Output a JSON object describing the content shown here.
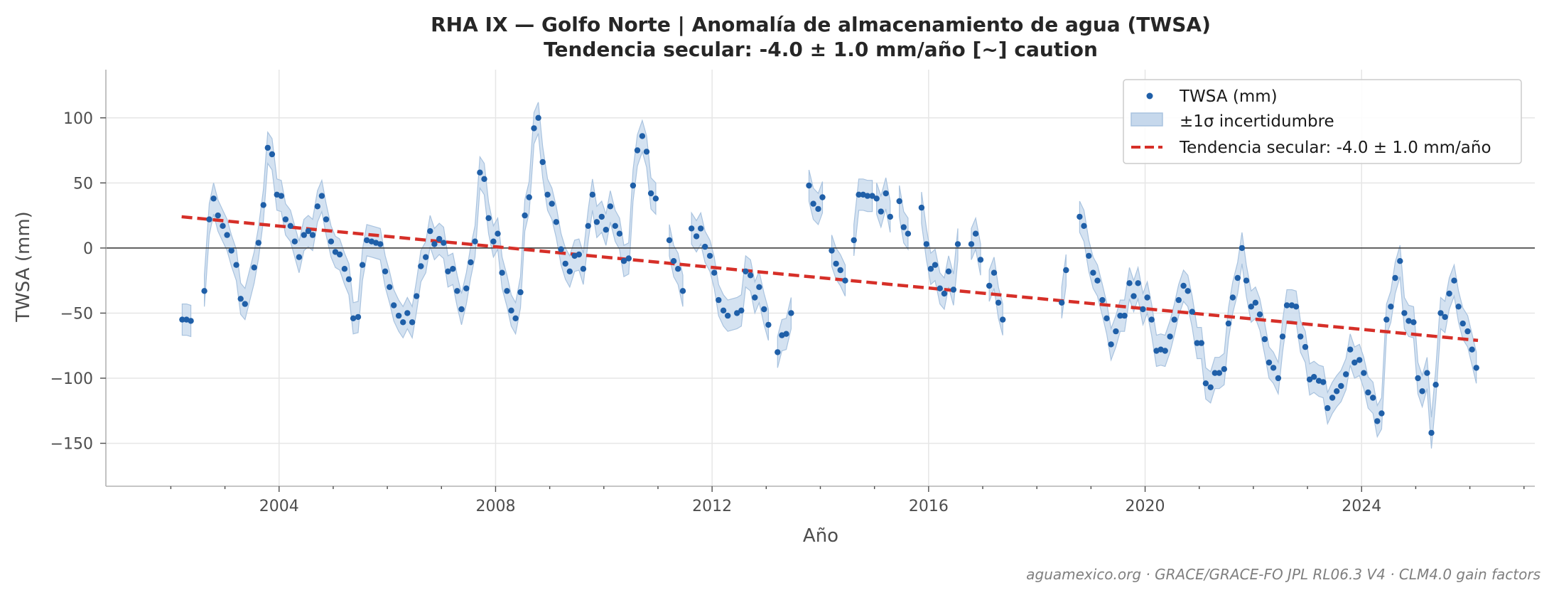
{
  "chart_data": {
    "type": "scatter",
    "title": "RHA IX — Golfo Norte  |  Anomalía de almacenamiento de agua (TWSA)",
    "subtitle": "Tendencia secular: -4.0 ± 1.0 mm/año  [~] caution",
    "xlabel": "Año",
    "ylabel": "TWSA (mm)",
    "xlim": [
      2000.8,
      2027.2
    ],
    "ylim": [
      -183,
      137
    ],
    "x_ticks": [
      2004,
      2008,
      2012,
      2016,
      2020,
      2024
    ],
    "x_tick_labels": [
      "2004",
      "2008",
      "2012",
      "2016",
      "2020",
      "2024"
    ],
    "y_ticks": [
      100,
      50,
      0,
      -50,
      -100,
      -150
    ],
    "y_tick_labels": [
      "100",
      "50",
      "0",
      "−50",
      "−100",
      "−150"
    ],
    "grid": true,
    "zero_line": true,
    "legend_position": "top-right",
    "legend": [
      "TWSA (mm)",
      "±1σ incertidumbre",
      "Tendencia secular: -4.0 ± 1.0 mm/año"
    ],
    "colors": {
      "points": "#1f5fa8",
      "band": "#c6d8ec",
      "band_edge": "#a9c3df",
      "trend": "#d62f28",
      "zero": "#333333",
      "grid": "#e6e6e6"
    },
    "sigma_mm": 12,
    "segments": [
      [
        [
          2002.21,
          -55
        ],
        [
          2002.29,
          -55
        ],
        [
          2002.37,
          -56
        ]
      ],
      [
        [
          2002.62,
          -33
        ],
        [
          2002.71,
          22
        ],
        [
          2002.79,
          38
        ],
        [
          2002.87,
          25
        ],
        [
          2002.96,
          17
        ],
        [
          2003.04,
          10
        ],
        [
          2003.12,
          -2
        ],
        [
          2003.21,
          -13
        ],
        [
          2003.29,
          -39
        ],
        [
          2003.37,
          -43
        ],
        [
          2003.54,
          -15
        ],
        [
          2003.62,
          4
        ],
        [
          2003.71,
          33
        ],
        [
          2003.79,
          77
        ],
        [
          2003.87,
          72
        ],
        [
          2003.96,
          41
        ],
        [
          2004.04,
          40
        ],
        [
          2004.12,
          22
        ],
        [
          2004.21,
          17
        ],
        [
          2004.29,
          5
        ],
        [
          2004.37,
          -7
        ],
        [
          2004.46,
          10
        ],
        [
          2004.54,
          13
        ],
        [
          2004.62,
          10
        ],
        [
          2004.71,
          32
        ],
        [
          2004.79,
          40
        ],
        [
          2004.87,
          22
        ],
        [
          2004.96,
          5
        ],
        [
          2005.04,
          -3
        ],
        [
          2005.12,
          -5
        ],
        [
          2005.21,
          -16
        ],
        [
          2005.29,
          -24
        ],
        [
          2005.37,
          -54
        ],
        [
          2005.46,
          -53
        ],
        [
          2005.54,
          -13
        ],
        [
          2005.62,
          6
        ],
        [
          2005.71,
          5
        ],
        [
          2005.79,
          4
        ],
        [
          2005.87,
          3
        ],
        [
          2005.96,
          -18
        ],
        [
          2006.04,
          -30
        ],
        [
          2006.12,
          -44
        ],
        [
          2006.21,
          -52
        ],
        [
          2006.29,
          -57
        ],
        [
          2006.37,
          -50
        ],
        [
          2006.46,
          -57
        ],
        [
          2006.54,
          -37
        ],
        [
          2006.62,
          -14
        ],
        [
          2006.71,
          -7
        ],
        [
          2006.79,
          13
        ],
        [
          2006.87,
          3
        ],
        [
          2006.96,
          7
        ],
        [
          2007.04,
          4
        ],
        [
          2007.12,
          -18
        ],
        [
          2007.21,
          -16
        ],
        [
          2007.29,
          -33
        ],
        [
          2007.37,
          -47
        ],
        [
          2007.46,
          -31
        ],
        [
          2007.54,
          -11
        ],
        [
          2007.62,
          5
        ],
        [
          2007.71,
          58
        ],
        [
          2007.79,
          53
        ],
        [
          2007.87,
          23
        ],
        [
          2007.96,
          5
        ],
        [
          2008.04,
          11
        ],
        [
          2008.12,
          -19
        ],
        [
          2008.21,
          -33
        ],
        [
          2008.29,
          -48
        ],
        [
          2008.37,
          -54
        ],
        [
          2008.46,
          -34
        ],
        [
          2008.54,
          25
        ],
        [
          2008.62,
          39
        ],
        [
          2008.71,
          92
        ],
        [
          2008.79,
          100
        ],
        [
          2008.87,
          66
        ],
        [
          2008.96,
          41
        ],
        [
          2009.04,
          34
        ],
        [
          2009.12,
          20
        ],
        [
          2009.21,
          -1
        ],
        [
          2009.29,
          -12
        ],
        [
          2009.37,
          -18
        ],
        [
          2009.46,
          -6
        ],
        [
          2009.54,
          -5
        ],
        [
          2009.62,
          -16
        ],
        [
          2009.71,
          17
        ],
        [
          2009.79,
          41
        ],
        [
          2009.87,
          20
        ],
        [
          2009.96,
          24
        ],
        [
          2010.04,
          14
        ],
        [
          2010.12,
          32
        ],
        [
          2010.21,
          17
        ],
        [
          2010.29,
          11
        ],
        [
          2010.37,
          -10
        ],
        [
          2010.46,
          -8
        ],
        [
          2010.54,
          48
        ],
        [
          2010.62,
          75
        ],
        [
          2010.71,
          86
        ],
        [
          2010.79,
          74
        ],
        [
          2010.87,
          42
        ],
        [
          2010.96,
          38
        ]
      ],
      [
        [
          2011.21,
          6
        ],
        [
          2011.29,
          -10
        ],
        [
          2011.37,
          -16
        ],
        [
          2011.46,
          -33
        ]
      ],
      [
        [
          2011.62,
          15
        ],
        [
          2011.71,
          9
        ],
        [
          2011.79,
          15
        ],
        [
          2011.87,
          1
        ],
        [
          2011.96,
          -6
        ],
        [
          2012.04,
          -19
        ],
        [
          2012.12,
          -40
        ],
        [
          2012.21,
          -48
        ],
        [
          2012.29,
          -52
        ],
        [
          2012.46,
          -50
        ],
        [
          2012.54,
          -48
        ],
        [
          2012.62,
          -18
        ],
        [
          2012.71,
          -21
        ],
        [
          2012.79,
          -38
        ],
        [
          2012.87,
          -30
        ],
        [
          2012.96,
          -47
        ],
        [
          2013.04,
          -59
        ]
      ],
      [
        [
          2013.21,
          -80
        ],
        [
          2013.29,
          -67
        ],
        [
          2013.37,
          -66
        ],
        [
          2013.46,
          -50
        ]
      ],
      [
        [
          2013.79,
          48
        ],
        [
          2013.87,
          34
        ],
        [
          2013.96,
          30
        ],
        [
          2014.04,
          39
        ]
      ],
      [
        [
          2014.21,
          -2
        ],
        [
          2014.29,
          -12
        ],
        [
          2014.37,
          -17
        ],
        [
          2014.46,
          -25
        ]
      ],
      [
        [
          2014.62,
          6
        ],
        [
          2014.71,
          41
        ],
        [
          2014.79,
          41
        ],
        [
          2014.87,
          40
        ],
        [
          2014.96,
          40
        ]
      ],
      [
        [
          2015.04,
          38
        ],
        [
          2015.12,
          28
        ],
        [
          2015.21,
          42
        ],
        [
          2015.29,
          24
        ]
      ],
      [
        [
          2015.46,
          36
        ],
        [
          2015.54,
          16
        ],
        [
          2015.62,
          11
        ]
      ],
      [
        [
          2015.87,
          31
        ],
        [
          2015.96,
          3
        ],
        [
          2016.04,
          -16
        ],
        [
          2016.12,
          -13
        ],
        [
          2016.21,
          -31
        ],
        [
          2016.29,
          -35
        ],
        [
          2016.37,
          -18
        ],
        [
          2016.46,
          -32
        ],
        [
          2016.54,
          3
        ]
      ],
      [
        [
          2016.79,
          3
        ],
        [
          2016.87,
          11
        ],
        [
          2016.96,
          -9
        ]
      ],
      [
        [
          2017.12,
          -29
        ],
        [
          2017.21,
          -19
        ],
        [
          2017.29,
          -42
        ],
        [
          2017.37,
          -55
        ]
      ],
      [
        [
          2018.46,
          -42
        ],
        [
          2018.54,
          -17
        ]
      ],
      [
        [
          2018.79,
          24
        ],
        [
          2018.87,
          17
        ],
        [
          2018.96,
          -6
        ],
        [
          2019.04,
          -19
        ],
        [
          2019.12,
          -25
        ],
        [
          2019.21,
          -40
        ],
        [
          2019.29,
          -54
        ],
        [
          2019.37,
          -74
        ],
        [
          2019.46,
          -64
        ],
        [
          2019.54,
          -52
        ],
        [
          2019.62,
          -52
        ],
        [
          2019.71,
          -27
        ],
        [
          2019.79,
          -37
        ],
        [
          2019.87,
          -27
        ],
        [
          2019.96,
          -47
        ],
        [
          2020.04,
          -38
        ],
        [
          2020.12,
          -55
        ],
        [
          2020.21,
          -79
        ],
        [
          2020.29,
          -78
        ],
        [
          2020.37,
          -79
        ],
        [
          2020.46,
          -68
        ],
        [
          2020.54,
          -55
        ],
        [
          2020.62,
          -40
        ],
        [
          2020.71,
          -29
        ],
        [
          2020.79,
          -33
        ],
        [
          2020.87,
          -49
        ],
        [
          2020.96,
          -73
        ],
        [
          2021.04,
          -73
        ],
        [
          2021.12,
          -104
        ],
        [
          2021.21,
          -107
        ],
        [
          2021.29,
          -96
        ],
        [
          2021.37,
          -96
        ],
        [
          2021.46,
          -93
        ],
        [
          2021.54,
          -58
        ],
        [
          2021.62,
          -38
        ],
        [
          2021.71,
          -23
        ],
        [
          2021.79,
          0
        ],
        [
          2021.87,
          -25
        ],
        [
          2021.96,
          -45
        ],
        [
          2022.04,
          -42
        ],
        [
          2022.12,
          -51
        ],
        [
          2022.21,
          -70
        ],
        [
          2022.29,
          -88
        ],
        [
          2022.37,
          -92
        ],
        [
          2022.46,
          -100
        ],
        [
          2022.54,
          -68
        ],
        [
          2022.62,
          -44
        ],
        [
          2022.71,
          -44
        ],
        [
          2022.79,
          -45
        ],
        [
          2022.87,
          -68
        ],
        [
          2022.96,
          -76
        ],
        [
          2023.04,
          -101
        ],
        [
          2023.12,
          -99
        ],
        [
          2023.21,
          -102
        ],
        [
          2023.29,
          -103
        ],
        [
          2023.37,
          -123
        ],
        [
          2023.46,
          -115
        ],
        [
          2023.54,
          -110
        ],
        [
          2023.62,
          -106
        ],
        [
          2023.71,
          -97
        ],
        [
          2023.79,
          -78
        ],
        [
          2023.87,
          -88
        ],
        [
          2023.96,
          -86
        ],
        [
          2024.04,
          -96
        ],
        [
          2024.12,
          -111
        ],
        [
          2024.21,
          -115
        ],
        [
          2024.29,
          -133
        ],
        [
          2024.37,
          -127
        ],
        [
          2024.46,
          -55
        ],
        [
          2024.54,
          -45
        ],
        [
          2024.62,
          -23
        ],
        [
          2024.71,
          -10
        ],
        [
          2024.79,
          -50
        ],
        [
          2024.87,
          -56
        ],
        [
          2024.96,
          -57
        ],
        [
          2025.04,
          -100
        ],
        [
          2025.12,
          -110
        ],
        [
          2025.21,
          -96
        ],
        [
          2025.29,
          -142
        ],
        [
          2025.37,
          -105
        ],
        [
          2025.46,
          -50
        ],
        [
          2025.54,
          -53
        ],
        [
          2025.62,
          -35
        ],
        [
          2025.71,
          -25
        ],
        [
          2025.79,
          -45
        ],
        [
          2025.87,
          -58
        ],
        [
          2025.96,
          -64
        ],
        [
          2026.04,
          -78
        ],
        [
          2026.12,
          -92
        ]
      ]
    ],
    "trend": {
      "x": [
        2002.2,
        2026.15
      ],
      "y": [
        24,
        -71
      ]
    },
    "source_note": "aguamexico.org · GRACE/GRACE-FO JPL RL06.3 V4 · CLM4.0 gain factors"
  }
}
